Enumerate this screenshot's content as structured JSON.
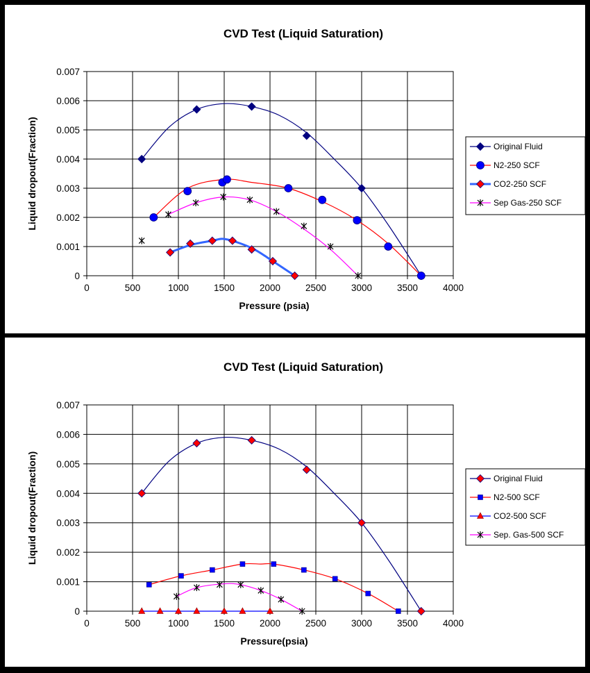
{
  "chart_data": [
    {
      "type": "scatter",
      "title": "CVD Test (Liquid Saturation)",
      "xlabel": "Pressure (psia)",
      "ylabel": "Liquid dropout(Fraction)",
      "xlim": [
        0,
        4000
      ],
      "ylim": [
        0,
        0.007
      ],
      "xticks": [
        "0",
        "500",
        "1000",
        "1500",
        "2000",
        "2500",
        "3000",
        "3500",
        "4000"
      ],
      "yticks": [
        "0",
        "0.001",
        "0.002",
        "0.003",
        "0.004",
        "0.005",
        "0.006",
        "0.007"
      ],
      "grid": true,
      "legend_position": "right",
      "series": [
        {
          "name": "Original Fluid",
          "color": "#000080",
          "line_width": 1.2,
          "marker": "diamond",
          "marker_fill": "#000080",
          "x": [
            600,
            1200,
            1800,
            2400,
            3000,
            3650
          ],
          "y": [
            0.004,
            0.0057,
            0.0058,
            0.0048,
            0.003,
            0.0
          ],
          "curve_x": [
            600,
            900,
            1200,
            1500,
            1800,
            2100,
            2400,
            2700,
            3000,
            3300,
            3650
          ],
          "curve_y": [
            0.004,
            0.0051,
            0.0057,
            0.0059,
            0.0058,
            0.0055,
            0.0049,
            0.004,
            0.003,
            0.0017,
            0.0
          ]
        },
        {
          "name": "N2-250 SCF",
          "color": "#ff0000",
          "line_width": 1.2,
          "marker": "circle",
          "marker_fill": "#0000ff",
          "x": [
            730,
            1100,
            1480,
            1530,
            2200,
            2570,
            2950,
            3290,
            3650
          ],
          "y": [
            0.002,
            0.0029,
            0.0032,
            0.0033,
            0.003,
            0.0026,
            0.0019,
            0.001,
            0.0
          ],
          "curve_x": [
            730,
            1100,
            1500,
            1800,
            2200,
            2600,
            2950,
            3290,
            3650
          ],
          "curve_y": [
            0.002,
            0.003,
            0.0033,
            0.0032,
            0.003,
            0.0025,
            0.0019,
            0.0011,
            0.0
          ]
        },
        {
          "name": "CO2-250 SCF",
          "color": "#3366ff",
          "line_width": 3,
          "marker": "diamond",
          "marker_fill": "#ff0000",
          "x": [
            910,
            1130,
            1370,
            1590,
            1800,
            2030,
            2270
          ],
          "y": [
            0.0008,
            0.0011,
            0.0012,
            0.0012,
            0.0009,
            0.0005,
            0.0
          ],
          "curve_x": [
            910,
            1130,
            1370,
            1520,
            1800,
            2030,
            2270
          ],
          "curve_y": [
            0.0008,
            0.00105,
            0.0012,
            0.00125,
            0.00095,
            0.0005,
            0.0
          ]
        },
        {
          "name": "Sep Gas-250 SCF",
          "color": "#ff00ff",
          "line_width": 1.2,
          "marker": "star",
          "marker_fill": "#000000",
          "x": [
            600,
            890,
            1190,
            1490,
            1780,
            2070,
            2370,
            2660,
            2960
          ],
          "y": [
            0.0012,
            0.0021,
            0.0025,
            0.0027,
            0.0026,
            0.0022,
            0.0017,
            0.001,
            0.0
          ],
          "curve_x": [
            890,
            1190,
            1490,
            1780,
            2070,
            2370,
            2660,
            2960
          ],
          "curve_y": [
            0.0021,
            0.0025,
            0.0027,
            0.0026,
            0.0022,
            0.0016,
            0.0009,
            0.0
          ]
        }
      ]
    },
    {
      "type": "scatter",
      "title": "CVD Test (Liquid Saturation)",
      "xlabel": "Pressure(psia)",
      "ylabel": "Liquid dropout(Fraction)",
      "xlim": [
        0,
        4000
      ],
      "ylim": [
        0,
        0.007
      ],
      "xticks": [
        "0",
        "500",
        "1000",
        "1500",
        "2000",
        "2500",
        "3000",
        "3500",
        "4000"
      ],
      "yticks": [
        "0",
        "0.001",
        "0.002",
        "0.003",
        "0.004",
        "0.005",
        "0.006",
        "0.007"
      ],
      "grid": true,
      "legend_position": "right",
      "series": [
        {
          "name": "Original Fluid",
          "color": "#000080",
          "line_width": 1.2,
          "marker": "diamond",
          "marker_fill": "#ff0000",
          "x": [
            600,
            1200,
            1800,
            2400,
            3000,
            3650
          ],
          "y": [
            0.004,
            0.0057,
            0.0058,
            0.0048,
            0.003,
            0.0
          ],
          "curve_x": [
            600,
            900,
            1200,
            1500,
            1800,
            2100,
            2400,
            2700,
            3000,
            3300,
            3650
          ],
          "curve_y": [
            0.004,
            0.0051,
            0.0057,
            0.0059,
            0.0058,
            0.0055,
            0.0049,
            0.004,
            0.003,
            0.0017,
            0.0
          ]
        },
        {
          "name": "N2-500 SCF",
          "color": "#ff0000",
          "line_width": 1.2,
          "marker": "square",
          "marker_fill": "#0000ff",
          "x": [
            680,
            1030,
            1370,
            1700,
            2040,
            2370,
            2710,
            3070,
            3400
          ],
          "y": [
            0.0009,
            0.0012,
            0.0014,
            0.0016,
            0.0016,
            0.0014,
            0.0011,
            0.0006,
            0.0
          ],
          "curve_x": [
            680,
            1030,
            1370,
            1700,
            1900,
            2040,
            2370,
            2710,
            3070,
            3400
          ],
          "curve_y": [
            0.0009,
            0.0012,
            0.0014,
            0.0016,
            0.0016,
            0.0016,
            0.0014,
            0.0011,
            0.0006,
            0.0
          ]
        },
        {
          "name": "CO2-500 SCF",
          "color": "#0000ff",
          "line_width": 1.2,
          "marker": "triangle",
          "marker_fill": "#ff0000",
          "x": [
            600,
            800,
            1000,
            1200,
            1500,
            1700,
            2000
          ],
          "y": [
            0,
            0,
            0,
            0,
            0,
            0,
            0
          ],
          "curve_x": [
            600,
            2000
          ],
          "curve_y": [
            0,
            0
          ]
        },
        {
          "name": "Sep. Gas-500 SCF",
          "color": "#ff00ff",
          "line_width": 1.2,
          "marker": "star",
          "marker_fill": "#000000",
          "x": [
            980,
            1200,
            1450,
            1680,
            1900,
            2120,
            2350
          ],
          "y": [
            0.0005,
            0.0008,
            0.0009,
            0.0009,
            0.0007,
            0.0004,
            0.0
          ],
          "curve_x": [
            980,
            1200,
            1500,
            1680,
            1900,
            2120,
            2350
          ],
          "curve_y": [
            0.0005,
            0.0008,
            0.00093,
            0.0009,
            0.0007,
            0.0004,
            0.0
          ]
        }
      ]
    }
  ]
}
